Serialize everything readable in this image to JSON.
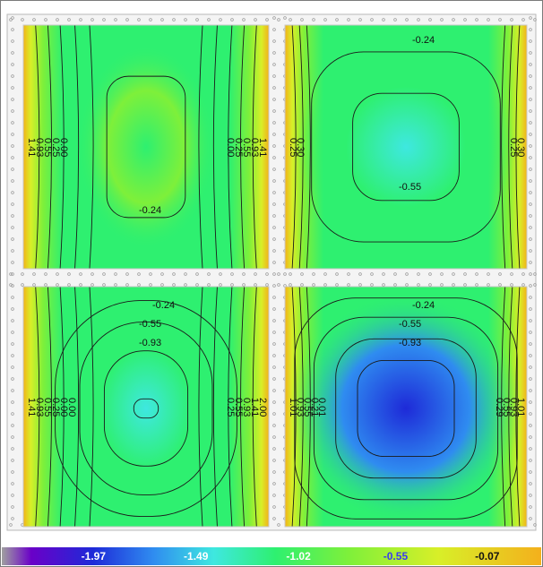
{
  "chart_data": {
    "type": "heatmap",
    "title": "",
    "colorbar": {
      "ticks": [
        "-1.97",
        "-1.49",
        "-1.02",
        "-0.55",
        "-0.07"
      ],
      "stops": [
        {
          "value": -2.2,
          "color": "#a0a0a0"
        },
        {
          "value": -1.97,
          "color": "#6a00c8"
        },
        {
          "value": -1.49,
          "color": "#1e2ad8"
        },
        {
          "value": -1.02,
          "color": "#2f8cf0"
        },
        {
          "value": -0.55,
          "color": "#3ee8e0"
        },
        {
          "value": -0.07,
          "color": "#2ef070"
        },
        {
          "value": 0.5,
          "color": "#7ef03a"
        },
        {
          "value": 1.2,
          "color": "#d8ef28"
        },
        {
          "value": 2.0,
          "color": "#f4b01c"
        }
      ]
    },
    "panels": [
      {
        "id": "top-left",
        "center_value": -0.3,
        "contour_labels": [
          {
            "text": "1.41",
            "rotated": true
          },
          {
            "text": "0.93",
            "rotated": true
          },
          {
            "text": "0.55",
            "rotated": true
          },
          {
            "text": "0.25",
            "rotated": true
          },
          {
            "text": "0.00",
            "rotated": true
          },
          {
            "text": "0.24",
            "rotated": false
          },
          {
            "text": "0.00",
            "rotated": true
          },
          {
            "text": "0.25",
            "rotated": true
          },
          {
            "text": "0.55",
            "rotated": true
          },
          {
            "text": "0.93",
            "rotated": true
          },
          {
            "text": "1.41",
            "rotated": true
          }
        ]
      },
      {
        "id": "top-right",
        "center_value": -0.62,
        "contour_labels": [
          {
            "text": "0.24",
            "rotated": false
          },
          {
            "text": "0.55",
            "rotated": false
          },
          {
            "text": "0.25",
            "rotated": true
          },
          {
            "text": "0.30",
            "rotated": true
          },
          {
            "text": "0.25",
            "rotated": true
          },
          {
            "text": "0.30",
            "rotated": true
          }
        ]
      },
      {
        "id": "bottom-left",
        "center_value": -0.98,
        "contour_labels": [
          {
            "text": "0.24",
            "rotated": false
          },
          {
            "text": "0.55",
            "rotated": false
          },
          {
            "text": "0.93",
            "rotated": false
          },
          {
            "text": "1.41",
            "rotated": true
          },
          {
            "text": "0.93",
            "rotated": true
          },
          {
            "text": "0.55",
            "rotated": true
          },
          {
            "text": "0.25",
            "rotated": true
          },
          {
            "text": "0.00",
            "rotated": true
          },
          {
            "text": "0.00",
            "rotated": true
          },
          {
            "text": "0.25",
            "rotated": true
          },
          {
            "text": "0.55",
            "rotated": true
          },
          {
            "text": "0.93",
            "rotated": true
          },
          {
            "text": "1.41",
            "rotated": true
          },
          {
            "text": "2.00",
            "rotated": true
          }
        ]
      },
      {
        "id": "bottom-right",
        "center_value": -1.6,
        "contour_labels": [
          {
            "text": "0.24",
            "rotated": false
          },
          {
            "text": "0.55",
            "rotated": false
          },
          {
            "text": "0.93",
            "rotated": false
          },
          {
            "text": "1.01",
            "rotated": true
          },
          {
            "text": "0.93",
            "rotated": true
          },
          {
            "text": "0.55",
            "rotated": true
          },
          {
            "text": "0.21",
            "rotated": true
          },
          {
            "text": "0.01",
            "rotated": true
          },
          {
            "text": "0.29",
            "rotated": true
          },
          {
            "text": "0.55",
            "rotated": true
          },
          {
            "text": "0.93",
            "rotated": true
          },
          {
            "text": "1.01",
            "rotated": true
          }
        ]
      }
    ]
  }
}
